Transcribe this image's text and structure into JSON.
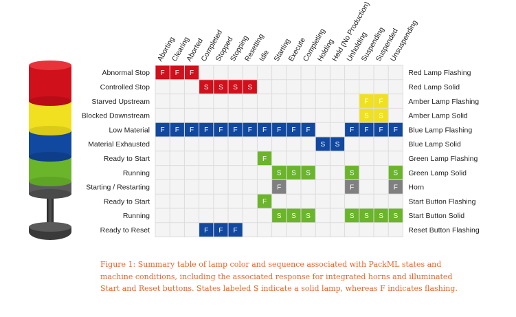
{
  "states": [
    "Aborting",
    "Clearing",
    "Aborted",
    "Completed",
    "Stopped",
    "Stopping",
    "Resetting",
    "Idle",
    "Starting",
    "Execute",
    "Completing",
    "Holding",
    "Held (No Production)",
    "Unholding",
    "Suspending",
    "Suspended",
    "Unsuspending"
  ],
  "rows": [
    {
      "left": "Abnormal Stop",
      "right": "Red Lamp Flashing",
      "color": "#d0101a",
      "cells": [
        "F",
        "F",
        "F",
        "",
        "",
        "",
        "",
        "",
        "",
        "",
        "",
        "",
        "",
        "",
        "",
        "",
        ""
      ]
    },
    {
      "left": "Controlled Stop",
      "right": "Red Lamp Solid",
      "color": "#d0101a",
      "cells": [
        "",
        "",
        "",
        "S",
        "S",
        "S",
        "S",
        "",
        "",
        "",
        "",
        "",
        "",
        "",
        "",
        "",
        ""
      ]
    },
    {
      "left": "Starved Upstream",
      "right": "Amber Lamp Flashing",
      "color": "#f0e020",
      "cells": [
        "",
        "",
        "",
        "",
        "",
        "",
        "",
        "",
        "",
        "",
        "",
        "",
        "",
        "",
        "F",
        "F",
        ""
      ]
    },
    {
      "left": "Blocked Downstream",
      "right": "Amber Lamp Solid",
      "color": "#f0e020",
      "cells": [
        "",
        "",
        "",
        "",
        "",
        "",
        "",
        "",
        "",
        "",
        "",
        "",
        "",
        "",
        "S",
        "S",
        ""
      ]
    },
    {
      "left": "Low Material",
      "right": "Blue Lamp Flashing",
      "color": "#1148a0",
      "cells": [
        "F",
        "F",
        "F",
        "F",
        "F",
        "F",
        "F",
        "F",
        "F",
        "F",
        "F",
        "",
        "",
        "F",
        "F",
        "F",
        "F"
      ]
    },
    {
      "left": "Material Exhausted",
      "right": "Blue Lamp Solid",
      "color": "#1148a0",
      "cells": [
        "",
        "",
        "",
        "",
        "",
        "",
        "",
        "",
        "",
        "",
        "",
        "S",
        "S",
        "",
        "",
        "",
        ""
      ]
    },
    {
      "left": "Ready to Start",
      "right": "Green Lamp Flashing",
      "color": "#6ab52a",
      "cells": [
        "",
        "",
        "",
        "",
        "",
        "",
        "",
        "F",
        "",
        "",
        "",
        "",
        "",
        "",
        "",
        "",
        ""
      ]
    },
    {
      "left": "Running",
      "right": "Green Lamp Solid",
      "color": "#6ab52a",
      "cells": [
        "",
        "",
        "",
        "",
        "",
        "",
        "",
        "",
        "S",
        "S",
        "S",
        "",
        "",
        "S",
        "",
        "",
        "S"
      ]
    },
    {
      "left": "Starting / Restarting",
      "right": "Horn",
      "color": "#808080",
      "cells": [
        "",
        "",
        "",
        "",
        "",
        "",
        "",
        "",
        "F",
        "",
        "",
        "",
        "",
        "F",
        "",
        "",
        "F"
      ]
    },
    {
      "left": "Ready to Start",
      "right": "Start Button Flashing",
      "color": "#6ab52a",
      "cells": [
        "",
        "",
        "",
        "",
        "",
        "",
        "",
        "F",
        "",
        "",
        "",
        "",
        "",
        "",
        "",
        "",
        ""
      ]
    },
    {
      "left": "Running",
      "right": "Start Button Solid",
      "color": "#6ab52a",
      "cells": [
        "",
        "",
        "",
        "",
        "",
        "",
        "",
        "",
        "S",
        "S",
        "S",
        "",
        "",
        "S",
        "S",
        "S",
        "S"
      ]
    },
    {
      "left": "Ready to Reset",
      "right": "Reset Button Flashing",
      "color": "#1148a0",
      "cells": [
        "",
        "",
        "",
        "F",
        "F",
        "F",
        "",
        "",
        "",
        "",
        "",
        "",
        "",
        "",
        "",
        "",
        ""
      ]
    }
  ],
  "lamp_colors": {
    "red": "#d0101a",
    "amber": "#f0e020",
    "blue": "#1148a0",
    "green": "#6ab52a",
    "grid": "#dcdcdc",
    "grid_fill": "#f4f4f4"
  },
  "caption": "Figure 1: Summary table of lamp color and sequence associated with PackML states and machine conditions, including the associated response for integrated horns and illuminated Start and Reset buttons. States labeled S indicate a solid lamp, whereas F indicates flashing."
}
